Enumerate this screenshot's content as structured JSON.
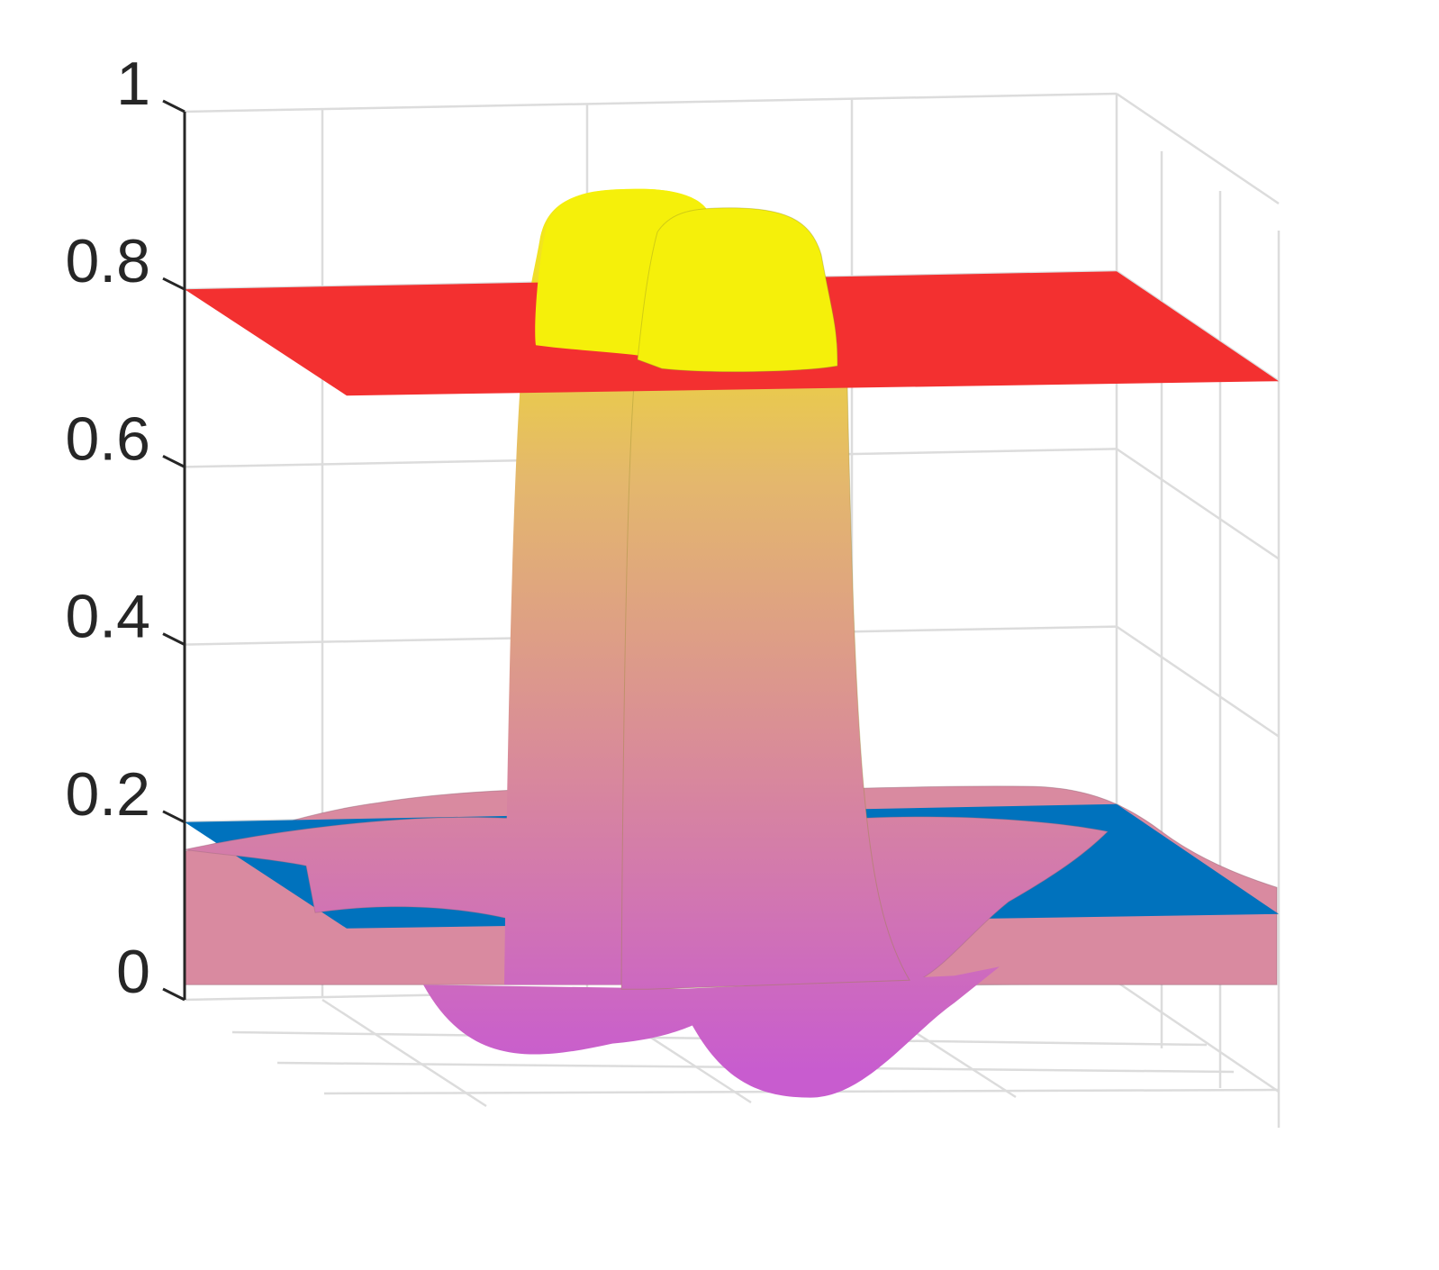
{
  "chart_data": {
    "type": "surface3d",
    "zlim": [
      0,
      1
    ],
    "z_ticks": [
      {
        "value": 0,
        "label": "0"
      },
      {
        "value": 0.2,
        "label": "0.2"
      },
      {
        "value": 0.4,
        "label": "0.4"
      },
      {
        "value": 0.6,
        "label": "0.6"
      },
      {
        "value": 0.8,
        "label": "0.8"
      },
      {
        "value": 1,
        "label": "1"
      }
    ],
    "grid": true,
    "colormap": [
      "#c85ccf",
      "#d8889c",
      "#e4b86c",
      "#f5f00a"
    ],
    "surface": {
      "peak_z": 0.91,
      "baseline_z": 0.23,
      "min_z": -0.1
    },
    "planes": [
      {
        "z": 0.8,
        "color": "#f33030"
      },
      {
        "z": 0.2,
        "color": "#0072bd"
      }
    ]
  }
}
